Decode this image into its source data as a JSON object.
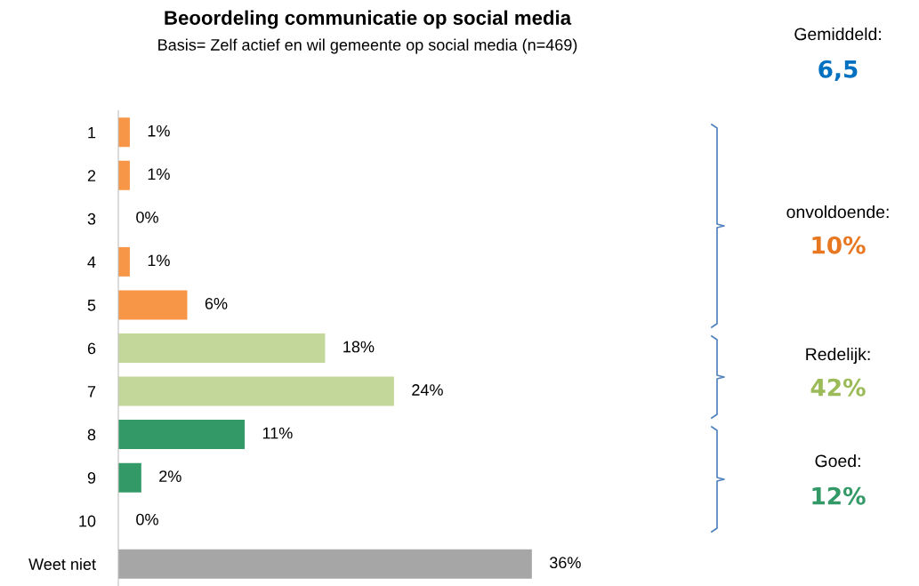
{
  "chart_data": {
    "type": "bar",
    "orientation": "horizontal",
    "title": "Beoordeling communicatie op social media",
    "subtitle": "Basis= Zelf actief en wil gemeente op social media (n=469)",
    "categories": [
      "1",
      "2",
      "3",
      "4",
      "5",
      "6",
      "7",
      "8",
      "9",
      "10",
      "Weet niet"
    ],
    "values": [
      1,
      1,
      0,
      1,
      6,
      18,
      24,
      11,
      2,
      0,
      36
    ],
    "colors": [
      "#f79646",
      "#f79646",
      "#f79646",
      "#f79646",
      "#f79646",
      "#c4d79b",
      "#c4d79b",
      "#339966",
      "#339966",
      "#339966",
      "#a6a6a6"
    ],
    "value_labels": [
      "1%",
      "1%",
      "0%",
      "1%",
      "6%",
      "18%",
      "24%",
      "11%",
      "2%",
      "0%",
      "36%"
    ],
    "annotations": [
      "Gemiddeld:",
      "6,5",
      "onvoldoende:",
      "10%",
      "Redelijk:",
      "42%",
      "Goed:",
      "12%"
    ]
  }
}
